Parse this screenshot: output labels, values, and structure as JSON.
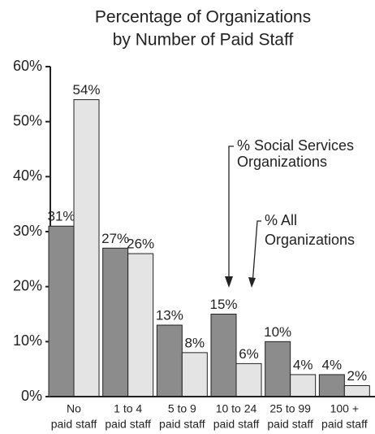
{
  "chart_data": {
    "type": "bar",
    "title": [
      "Percentage of Organizations",
      "by Number of Paid Staff"
    ],
    "categories": [
      [
        "No",
        "paid staff"
      ],
      [
        "1 to 4",
        "paid staff"
      ],
      [
        "5 to 9",
        "paid staff"
      ],
      [
        "10 to 24",
        "paid staff"
      ],
      [
        "25 to 99",
        "paid staff"
      ],
      [
        "100 +",
        "paid staff"
      ]
    ],
    "series": [
      {
        "name": [
          "% Social Services",
          "Organizations"
        ],
        "color": "#8c8c8c",
        "values": [
          31,
          27,
          13,
          15,
          10,
          4
        ],
        "value_labels": [
          "31%",
          "27%",
          "13%",
          "15%",
          "10%",
          "4%"
        ]
      },
      {
        "name": [
          "% All",
          "Organizations"
        ],
        "color": "#e4e4e4",
        "values": [
          54,
          26,
          8,
          6,
          4,
          2
        ],
        "value_labels": [
          "54%",
          "26%",
          "8%",
          "6%",
          "4%",
          "2%"
        ]
      }
    ],
    "ylim": [
      0,
      60
    ],
    "yticks": [
      {
        "value": 0,
        "label": "0%"
      },
      {
        "value": 10,
        "label": "10%"
      },
      {
        "value": 20,
        "label": "20%"
      },
      {
        "value": 30,
        "label": "30%"
      },
      {
        "value": 40,
        "label": "40%"
      },
      {
        "value": 50,
        "label": "50%"
      },
      {
        "value": 60,
        "label": "60%"
      }
    ]
  }
}
